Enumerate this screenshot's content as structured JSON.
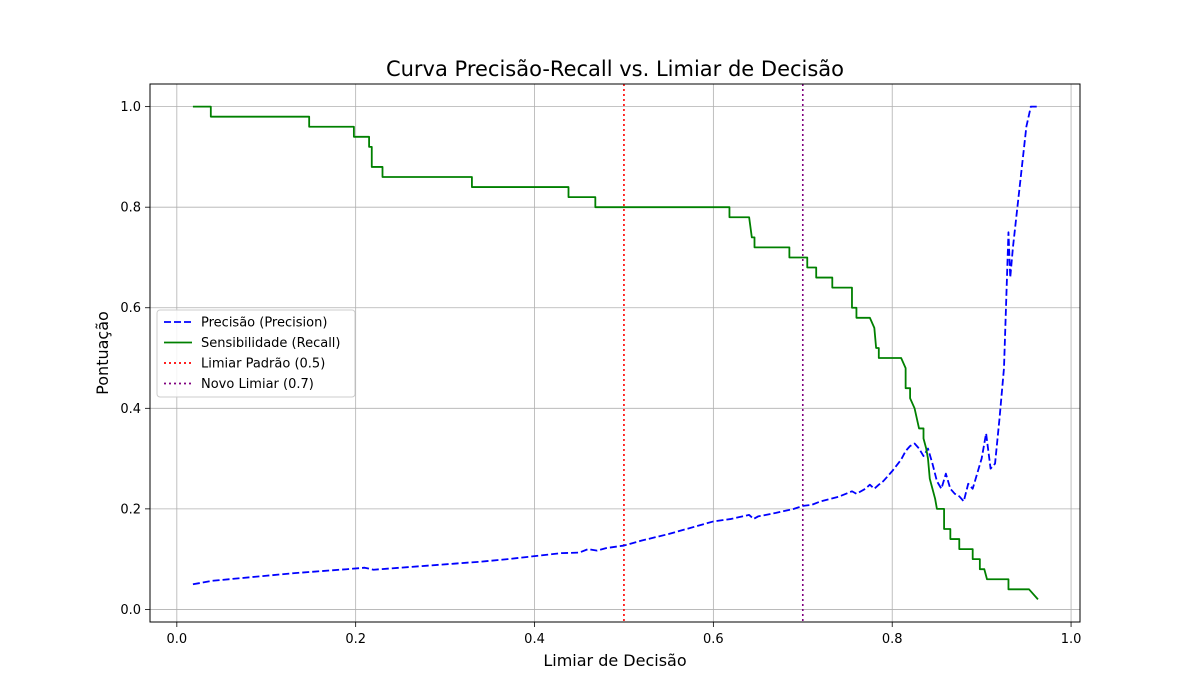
{
  "chart_data": {
    "type": "line",
    "title": "Curva Precisão-Recall vs. Limiar de Decisão",
    "xlabel": "Limiar de Decisão",
    "ylabel": "Pontuação",
    "xlim": [
      -0.03,
      1.01
    ],
    "ylim": [
      -0.025,
      1.045
    ],
    "x_ticks": [
      0.0,
      0.2,
      0.4,
      0.6,
      0.8,
      1.0
    ],
    "y_ticks": [
      0.0,
      0.2,
      0.4,
      0.6,
      0.8,
      1.0
    ],
    "x_tick_labels": [
      "0.0",
      "0.2",
      "0.4",
      "0.6",
      "0.8",
      "1.0"
    ],
    "y_tick_labels": [
      "0.0",
      "0.2",
      "0.4",
      "0.6",
      "0.8",
      "1.0"
    ],
    "grid": true,
    "legend_position": "center-left",
    "series": [
      {
        "name": "Precisão (Precision)",
        "color": "#0000ff",
        "style": "dashed",
        "x": [
          0.018,
          0.04,
          0.07,
          0.1,
          0.13,
          0.16,
          0.19,
          0.21,
          0.22,
          0.25,
          0.28,
          0.31,
          0.34,
          0.37,
          0.4,
          0.43,
          0.45,
          0.46,
          0.47,
          0.48,
          0.5,
          0.52,
          0.55,
          0.58,
          0.6,
          0.62,
          0.64,
          0.645,
          0.65,
          0.67,
          0.69,
          0.7,
          0.71,
          0.72,
          0.74,
          0.755,
          0.76,
          0.77,
          0.775,
          0.78,
          0.785,
          0.79,
          0.8,
          0.81,
          0.815,
          0.82,
          0.825,
          0.83,
          0.835,
          0.84,
          0.845,
          0.85,
          0.855,
          0.86,
          0.865,
          0.87,
          0.875,
          0.88,
          0.885,
          0.89,
          0.895,
          0.9,
          0.905,
          0.91,
          0.915,
          0.92,
          0.925,
          0.93,
          0.932,
          0.935,
          0.94,
          0.945,
          0.95,
          0.955,
          0.965
        ],
        "y": [
          0.05,
          0.057,
          0.062,
          0.067,
          0.072,
          0.076,
          0.08,
          0.083,
          0.079,
          0.083,
          0.087,
          0.091,
          0.095,
          0.1,
          0.106,
          0.112,
          0.113,
          0.12,
          0.117,
          0.122,
          0.127,
          0.137,
          0.15,
          0.165,
          0.175,
          0.18,
          0.188,
          0.18,
          0.185,
          0.192,
          0.2,
          0.206,
          0.208,
          0.215,
          0.224,
          0.235,
          0.23,
          0.24,
          0.248,
          0.24,
          0.248,
          0.255,
          0.275,
          0.298,
          0.315,
          0.325,
          0.33,
          0.32,
          0.305,
          0.32,
          0.29,
          0.255,
          0.24,
          0.27,
          0.24,
          0.23,
          0.225,
          0.215,
          0.25,
          0.24,
          0.27,
          0.3,
          0.35,
          0.28,
          0.29,
          0.38,
          0.48,
          0.75,
          0.66,
          0.72,
          0.8,
          0.88,
          0.96,
          1.0,
          1.0
        ]
      },
      {
        "name": "Sensibilidade (Recall)",
        "color": "#008000",
        "style": "solid",
        "step": true,
        "x": [
          0.018,
          0.038,
          0.038,
          0.148,
          0.148,
          0.198,
          0.198,
          0.215,
          0.215,
          0.218,
          0.218,
          0.23,
          0.23,
          0.33,
          0.33,
          0.438,
          0.438,
          0.468,
          0.468,
          0.618,
          0.618,
          0.64,
          0.643,
          0.646,
          0.646,
          0.685,
          0.685,
          0.705,
          0.705,
          0.715,
          0.715,
          0.733,
          0.733,
          0.755,
          0.755,
          0.76,
          0.76,
          0.775,
          0.78,
          0.782,
          0.785,
          0.785,
          0.81,
          0.815,
          0.815,
          0.82,
          0.82,
          0.825,
          0.83,
          0.835,
          0.835,
          0.838,
          0.84,
          0.842,
          0.845,
          0.848,
          0.85,
          0.85,
          0.858,
          0.858,
          0.865,
          0.865,
          0.875,
          0.875,
          0.89,
          0.89,
          0.898,
          0.898,
          0.903,
          0.906,
          0.906,
          0.93,
          0.93,
          0.953,
          0.963
        ],
        "y": [
          1.0,
          1.0,
          0.98,
          0.98,
          0.96,
          0.96,
          0.94,
          0.94,
          0.92,
          0.92,
          0.88,
          0.88,
          0.86,
          0.86,
          0.84,
          0.84,
          0.82,
          0.82,
          0.8,
          0.8,
          0.78,
          0.78,
          0.74,
          0.74,
          0.72,
          0.72,
          0.7,
          0.7,
          0.68,
          0.68,
          0.66,
          0.66,
          0.64,
          0.64,
          0.6,
          0.6,
          0.58,
          0.58,
          0.56,
          0.52,
          0.52,
          0.5,
          0.5,
          0.48,
          0.44,
          0.44,
          0.42,
          0.4,
          0.36,
          0.36,
          0.34,
          0.32,
          0.3,
          0.26,
          0.24,
          0.22,
          0.2,
          0.2,
          0.2,
          0.16,
          0.16,
          0.14,
          0.14,
          0.12,
          0.12,
          0.1,
          0.1,
          0.08,
          0.08,
          0.06,
          0.06,
          0.06,
          0.04,
          0.04,
          0.02
        ]
      }
    ],
    "vlines": [
      {
        "name": "Limiar Padrão (0.5)",
        "x": 0.5,
        "color": "#ff0000",
        "style": "dotted"
      },
      {
        "name": "Novo Limiar (0.7)",
        "x": 0.7,
        "color": "#800080",
        "style": "dotted"
      }
    ]
  }
}
